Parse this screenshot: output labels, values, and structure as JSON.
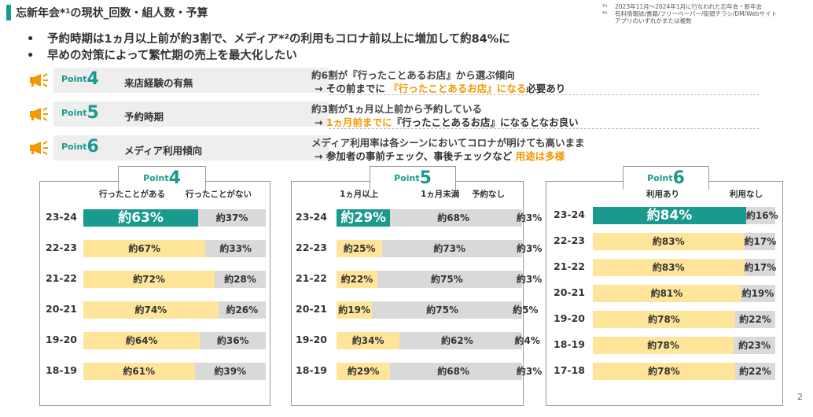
{
  "header": {
    "title": "忘新年会*¹の現状_回数・組人数・予算",
    "notes": [
      {
        "mark": "*¹",
        "text": "2023年11月～2024年1月に行なわれた忘年会・新年会"
      },
      {
        "mark": "*²",
        "text": "有料情報誌/書籍/フリーペーパー/街頭チラシ/DM/Webサイト"
      },
      {
        "mark": "",
        "text": "アプリのいずれかまたは複数"
      }
    ]
  },
  "bullets": [
    {
      "dot": "•",
      "text": "予約時期は1ヵ月以上前が約3割で、メディア*²の利用もコロナ前以上に増加して約84%に"
    },
    {
      "dot": "•",
      "text": "早めの対策によって繁忙期の売上を最大化したい"
    }
  ],
  "points": [
    {
      "prefix": "Point",
      "num": "4",
      "label": "来店経験の有無",
      "line1": "約6割が『行ったことあるお店』から選ぶ傾向",
      "line2_a": "→ その前までに",
      "line2_hl": "『行ったことあるお店』になる",
      "line2_b": "必要あり"
    },
    {
      "prefix": "Point",
      "num": "5",
      "label": "予約時期",
      "line1": "約3割が1ヵ月以上前から予約している",
      "line2_a": "→",
      "line2_hl": "1ヵ月前までに",
      "line2_b": "『行ったことあるお店』になるとなお良い"
    },
    {
      "prefix": "Point",
      "num": "6",
      "label": "メディア利用傾向",
      "line1": "メディア利用率は各シーンにおいてコロナが明けても高いまま",
      "line2_a": "→ 参加者の事前チェック、事後チェックなど",
      "line2_hl": "用途は多様",
      "line2_b": ""
    }
  ],
  "colors": {
    "teal": "#1a9a8f",
    "yellow": "#ffe599",
    "gray": "#d9d9d9",
    "orange": "#f39800"
  },
  "chart_data": [
    {
      "type": "bar",
      "stacked": true,
      "orientation": "horizontal",
      "title_prefix": "Point",
      "title_num": "4",
      "categories": [
        "23-24",
        "22-23",
        "21-22",
        "20-21",
        "19-20",
        "18-19"
      ],
      "series": [
        {
          "name": "行ったことがある",
          "values": [
            63,
            67,
            72,
            74,
            64,
            61
          ],
          "labels": [
            "約63%",
            "約67%",
            "約72%",
            "約74%",
            "約64%",
            "約61%"
          ]
        },
        {
          "name": "行ったことがない",
          "values": [
            37,
            33,
            28,
            26,
            36,
            39
          ],
          "labels": [
            "約37%",
            "約33%",
            "約28%",
            "約26%",
            "約36%",
            "約39%"
          ]
        }
      ]
    },
    {
      "type": "bar",
      "stacked": true,
      "orientation": "horizontal",
      "title_prefix": "Point",
      "title_num": "5",
      "categories": [
        "23-24",
        "22-23",
        "21-22",
        "20-21",
        "19-20",
        "18-19"
      ],
      "series": [
        {
          "name": "1ヵ月以上",
          "values": [
            29,
            25,
            22,
            19,
            34,
            29
          ],
          "labels": [
            "約29%",
            "約25%",
            "約22%",
            "約19%",
            "約34%",
            "約29%"
          ]
        },
        {
          "name": "1ヵ月未満",
          "values": [
            68,
            73,
            75,
            75,
            62,
            68
          ],
          "labels": [
            "約68%",
            "約73%",
            "約75%",
            "約75%",
            "約62%",
            "約68%"
          ]
        },
        {
          "name": "予約なし",
          "values": [
            3,
            3,
            3,
            5,
            4,
            3
          ],
          "labels": [
            "約3%",
            "約3%",
            "約3%",
            "約5%",
            "約4%",
            "約3%"
          ]
        }
      ]
    },
    {
      "type": "bar",
      "stacked": true,
      "orientation": "horizontal",
      "title_prefix": "Point",
      "title_num": "6",
      "categories": [
        "23-24",
        "22-23",
        "21-22",
        "20-21",
        "19-20",
        "18-19",
        "17-18"
      ],
      "series": [
        {
          "name": "利用あり",
          "values": [
            84,
            83,
            83,
            81,
            78,
            78,
            78
          ],
          "labels": [
            "約84%",
            "約83%",
            "約83%",
            "約81%",
            "約78%",
            "約78%",
            "約78%"
          ]
        },
        {
          "name": "利用なし",
          "values": [
            16,
            17,
            17,
            19,
            22,
            23,
            22
          ],
          "labels": [
            "約16%",
            "約17%",
            "約17%",
            "約19%",
            "約22%",
            "約23%",
            "約22%"
          ]
        }
      ]
    }
  ],
  "page_number": "2"
}
